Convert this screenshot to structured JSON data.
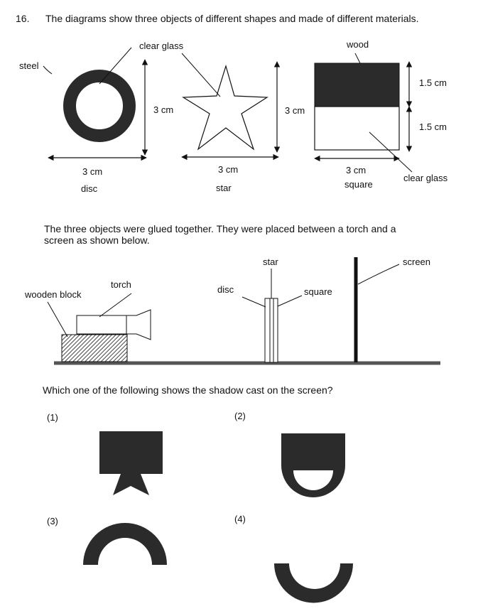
{
  "question": {
    "number": "16.",
    "intro": "The diagrams show three objects of different shapes and made of different materials.",
    "setup": "The three objects were glued together. They were placed between a torch and a",
    "setup_line2": "screen as shown below.",
    "prompt": "Which one of the following shows the shadow cast on the screen?"
  },
  "objects": {
    "disc": {
      "name": "disc",
      "material": "steel",
      "inner_material": "clear glass",
      "width": "3 cm",
      "height": "3 cm"
    },
    "star": {
      "name": "star",
      "width": "3 cm",
      "height": "3 cm"
    },
    "square": {
      "name": "square",
      "top_material": "wood",
      "bottom_material": "clear glass",
      "width": "3 cm",
      "top_height": "1.5 cm",
      "bottom_height": "1.5 cm"
    }
  },
  "setup_labels": {
    "wooden_block": "wooden block",
    "torch": "torch",
    "disc": "disc",
    "star": "star",
    "square": "square",
    "screen": "screen"
  },
  "options": [
    "(1)",
    "(2)",
    "(3)",
    "(4)"
  ],
  "colors": {
    "ink": "#111111",
    "fill_dark": "#2b2b2b",
    "hatch": "#444444"
  }
}
